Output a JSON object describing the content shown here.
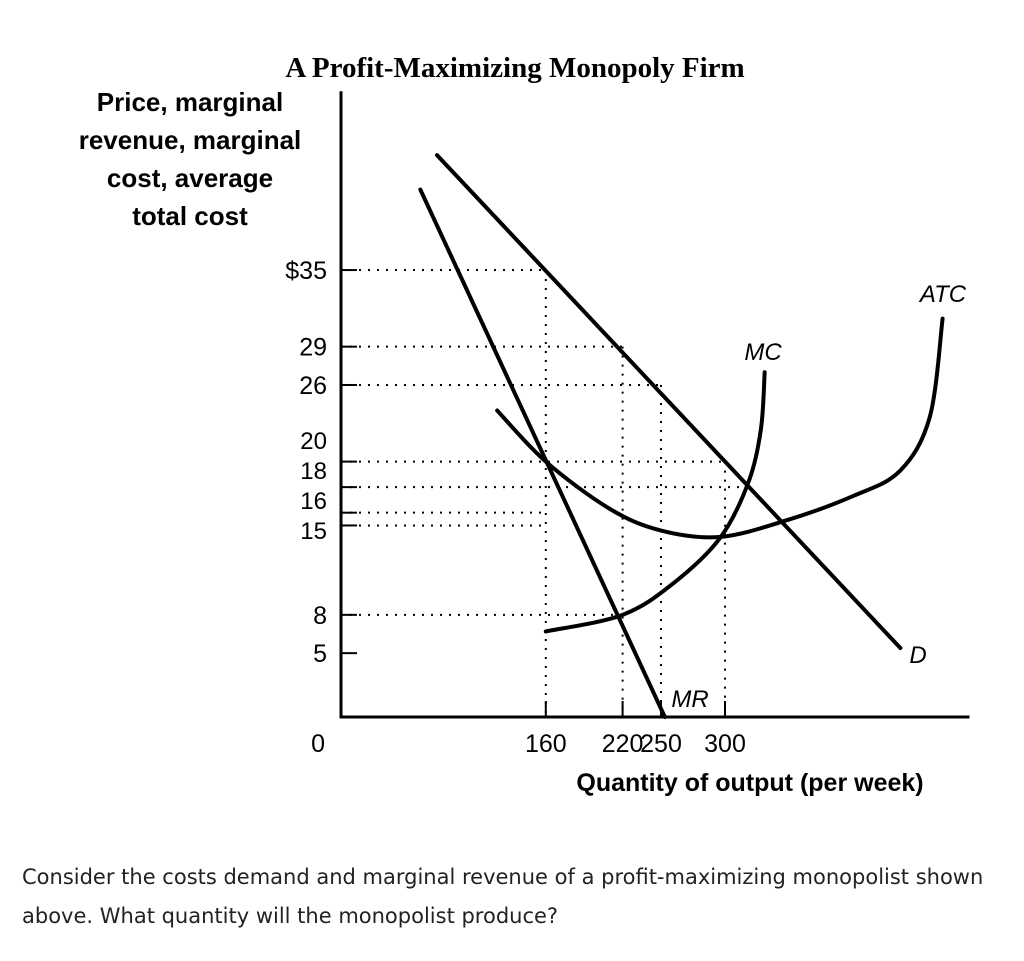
{
  "chart_data": {
    "type": "line",
    "title": "A Profit-Maximizing Monopoly Firm",
    "ylabel_lines": [
      "Price, marginal",
      "revenue, marginal",
      "cost, average",
      "total cost"
    ],
    "xlabel": "Quantity of output (per week)",
    "xlim": [
      0,
      491
    ],
    "ylim": [
      0,
      49
    ],
    "grid": false,
    "y_ticks": [
      {
        "value": 35,
        "label": "$35"
      },
      {
        "value": 29,
        "label": "29"
      },
      {
        "value": 26,
        "label": "26"
      },
      {
        "value": 20,
        "label": "20"
      },
      {
        "value": 18,
        "label": "18"
      },
      {
        "value": 16,
        "label": "16"
      },
      {
        "value": 15,
        "label": "15"
      },
      {
        "value": 8,
        "label": "8"
      },
      {
        "value": 5,
        "label": "5"
      }
    ],
    "origin_label": "0",
    "x_ticks": [
      {
        "value": 160,
        "label": "160"
      },
      {
        "value": 220,
        "label": "220"
      },
      {
        "value": 250,
        "label": "250"
      },
      {
        "value": 300,
        "label": "300"
      }
    ],
    "guides": {
      "horizontal": [
        [
          35,
          160
        ],
        [
          29,
          220
        ],
        [
          26,
          250
        ],
        [
          20,
          300
        ],
        [
          18,
          318
        ],
        [
          16,
          160
        ],
        [
          15,
          160
        ],
        [
          8,
          220
        ]
      ],
      "vertical": [
        [
          160,
          35
        ],
        [
          220,
          29
        ],
        [
          250,
          26
        ],
        [
          300,
          20
        ]
      ]
    },
    "series": [
      {
        "name": "D",
        "points": [
          [
            75,
            44
          ],
          [
            437,
            5.4
          ]
        ]
      },
      {
        "name": "MR",
        "points": [
          [
            62,
            41.3
          ],
          [
            253,
            0
          ]
        ]
      },
      {
        "name": "MC",
        "points": [
          [
            160,
            6.7
          ],
          [
            220,
            8
          ],
          [
            260,
            10.5
          ],
          [
            296,
            14
          ],
          [
            318,
            18.3
          ],
          [
            328,
            22.5
          ],
          [
            331,
            27
          ]
        ]
      },
      {
        "name": "ATC",
        "points": [
          [
            122,
            24
          ],
          [
            160,
            20
          ],
          [
            210,
            16.3
          ],
          [
            250,
            14.6
          ],
          [
            296,
            14.1
          ],
          [
            348,
            15.4
          ],
          [
            400,
            17.3
          ],
          [
            437,
            19.3
          ],
          [
            460,
            23.5
          ],
          [
            470,
            31.2
          ]
        ]
      }
    ]
  },
  "question": "Consider the costs demand and marginal revenue of a profit-maximizing monopolist shown above. What quantity will the monopolist produce?"
}
